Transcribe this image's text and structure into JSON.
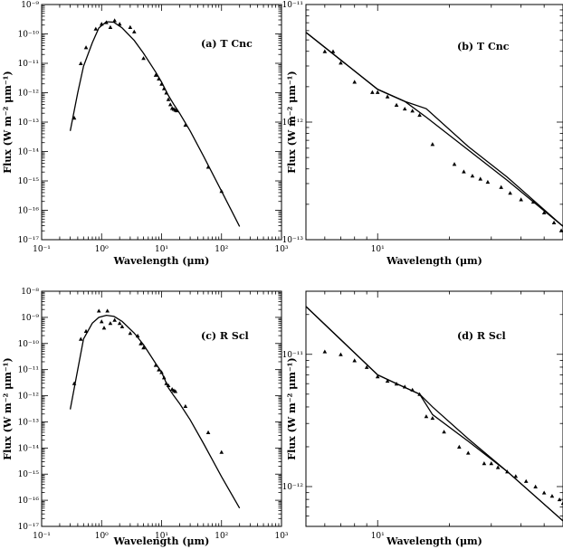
{
  "chart_data": [
    {
      "type": "line",
      "panel_label": "(a) T Cnc",
      "xlabel": "Wavelength (μm)",
      "ylabel": "Flux (W m⁻² μm⁻¹)",
      "x_scale": "log",
      "y_scale": "log",
      "xlim": [
        0.1,
        1000
      ],
      "ylim": [
        1e-17,
        1e-09
      ],
      "x_ticks": [
        {
          "v": 0.1,
          "label": "10⁻¹"
        },
        {
          "v": 1,
          "label": "10⁰"
        },
        {
          "v": 10,
          "label": "10¹"
        },
        {
          "v": 100,
          "label": "10²"
        },
        {
          "v": 1000,
          "label": "10³"
        }
      ],
      "y_ticks": [
        {
          "v": 1e-17,
          "label": "10⁻¹⁷"
        },
        {
          "v": 1e-16,
          "label": "10⁻¹⁶"
        },
        {
          "v": 1e-15,
          "label": "10⁻¹⁵"
        },
        {
          "v": 1e-14,
          "label": "10⁻¹⁴"
        },
        {
          "v": 1e-13,
          "label": "10⁻¹³"
        },
        {
          "v": 1e-12,
          "label": "10⁻¹²"
        },
        {
          "v": 1e-11,
          "label": "10⁻¹¹"
        },
        {
          "v": 1e-10,
          "label": "10⁻¹⁰"
        },
        {
          "v": 1e-09,
          "label": "10⁻⁹"
        }
      ],
      "series": [
        {
          "style": "line",
          "points": [
            [
              0.3,
              5e-14
            ],
            [
              0.4,
              1e-12
            ],
            [
              0.5,
              8e-12
            ],
            [
              0.7,
              5e-11
            ],
            [
              0.9,
              1.6e-10
            ],
            [
              1.2,
              2.6e-10
            ],
            [
              1.6,
              2.5e-10
            ],
            [
              2.2,
              1.6e-10
            ],
            [
              3.5,
              6e-11
            ],
            [
              5,
              2.2e-11
            ],
            [
              8,
              5e-12
            ],
            [
              10,
              2.3e-12
            ],
            [
              13,
              8e-13
            ],
            [
              16,
              4e-13
            ],
            [
              20,
              2e-13
            ],
            [
              30,
              5e-14
            ],
            [
              50,
              7e-15
            ],
            [
              100,
              4.5e-16
            ],
            [
              200,
              2.8e-17
            ]
          ]
        },
        {
          "style": "markers",
          "points": [
            [
              0.35,
              1.4e-13
            ],
            [
              0.45,
              1e-11
            ],
            [
              0.55,
              3.5e-11
            ],
            [
              0.8,
              1.5e-10
            ],
            [
              1.0,
              2.2e-10
            ],
            [
              1.2,
              2.5e-10
            ],
            [
              1.4,
              1.7e-10
            ],
            [
              1.65,
              2.9e-10
            ],
            [
              2.0,
              2.2e-10
            ],
            [
              3.0,
              1.7e-10
            ],
            [
              3.5,
              1.2e-10
            ],
            [
              5,
              1.5e-11
            ],
            [
              8,
              4e-12
            ],
            [
              9,
              3e-12
            ],
            [
              10,
              2e-12
            ],
            [
              11,
              1.4e-12
            ],
            [
              12,
              1e-12
            ],
            [
              13,
              6e-13
            ],
            [
              14,
              4e-13
            ],
            [
              15,
              3e-13
            ],
            [
              16,
              2.8e-13
            ],
            [
              17,
              2.6e-13
            ],
            [
              18,
              2.5e-13
            ],
            [
              25,
              8e-14
            ],
            [
              60,
              3e-15
            ],
            [
              100,
              4.5e-16
            ]
          ]
        }
      ]
    },
    {
      "type": "line",
      "panel_label": "(b) T Cnc",
      "xlabel": "Wavelength (μm)",
      "ylabel": "Flux (W m⁻² μm⁻¹)",
      "x_scale": "log",
      "y_scale": "log",
      "xlim": [
        5,
        60
      ],
      "ylim": [
        1e-13,
        1e-11
      ],
      "x_ticks": [
        {
          "v": 10,
          "label": "10¹"
        }
      ],
      "y_ticks": [
        {
          "v": 1e-13,
          "label": "10⁻¹³"
        },
        {
          "v": 1e-12,
          "label": "10⁻¹²"
        },
        {
          "v": 1e-11,
          "label": "10⁻¹¹"
        }
      ],
      "series": [
        {
          "style": "line",
          "points": [
            [
              5,
              5.8e-12
            ],
            [
              10,
              1.9e-12
            ],
            [
              13,
              1.5e-12
            ],
            [
              16,
              1.3e-12
            ],
            [
              24,
              6.2e-13
            ],
            [
              35,
              3.4e-13
            ],
            [
              60,
              1.3e-13
            ]
          ]
        },
        {
          "style": "line",
          "points": [
            [
              5,
              5.8e-12
            ],
            [
              10,
              1.9e-12
            ],
            [
              13,
              1.5e-12
            ],
            [
              16,
              1.1e-12
            ],
            [
              24,
              5.8e-13
            ],
            [
              35,
              3.2e-13
            ],
            [
              60,
              1.3e-13
            ]
          ]
        },
        {
          "style": "markers",
          "points": [
            [
              6,
              4e-12
            ],
            [
              6.5,
              4e-12
            ],
            [
              7,
              3.2e-12
            ],
            [
              8,
              2.2e-12
            ],
            [
              9.5,
              1.8e-12
            ],
            [
              10,
              1.8e-12
            ],
            [
              11,
              1.65e-12
            ],
            [
              12,
              1.4e-12
            ],
            [
              13,
              1.3e-12
            ],
            [
              14,
              1.25e-12
            ],
            [
              15,
              1.15e-12
            ],
            [
              17,
              6.5e-13
            ],
            [
              21,
              4.4e-13
            ],
            [
              23,
              3.8e-13
            ],
            [
              25,
              3.5e-13
            ],
            [
              27,
              3.3e-13
            ],
            [
              29,
              3.1e-13
            ],
            [
              33,
              2.8e-13
            ],
            [
              36,
              2.5e-13
            ],
            [
              40,
              2.2e-13
            ],
            [
              45,
              2.1e-13
            ],
            [
              50,
              1.7e-13
            ],
            [
              55,
              1.4e-13
            ],
            [
              59,
              1.2e-13
            ]
          ]
        }
      ]
    },
    {
      "type": "line",
      "panel_label": "(c) R Scl",
      "xlabel": "Wavelength (μm)",
      "ylabel": "Flux (W m⁻² μm⁻¹)",
      "x_scale": "log",
      "y_scale": "log",
      "xlim": [
        0.1,
        1000
      ],
      "ylim": [
        1e-17,
        1e-08
      ],
      "x_ticks": [
        {
          "v": 0.1,
          "label": "10⁻¹"
        },
        {
          "v": 1,
          "label": "10⁰"
        },
        {
          "v": 10,
          "label": "10¹"
        },
        {
          "v": 100,
          "label": "10²"
        },
        {
          "v": 1000,
          "label": "10³"
        }
      ],
      "y_ticks": [
        {
          "v": 1e-17,
          "label": "10⁻¹⁷"
        },
        {
          "v": 1e-16,
          "label": "10⁻¹⁶"
        },
        {
          "v": 1e-15,
          "label": "10⁻¹⁵"
        },
        {
          "v": 1e-14,
          "label": "10⁻¹⁴"
        },
        {
          "v": 1e-13,
          "label": "10⁻¹³"
        },
        {
          "v": 1e-12,
          "label": "10⁻¹²"
        },
        {
          "v": 1e-11,
          "label": "10⁻¹¹"
        },
        {
          "v": 1e-10,
          "label": "10⁻¹⁰"
        },
        {
          "v": 1e-09,
          "label": "10⁻⁹"
        },
        {
          "v": 1e-08,
          "label": "10⁻⁸"
        }
      ],
      "series": [
        {
          "style": "line",
          "points": [
            [
              0.3,
              3e-13
            ],
            [
              0.4,
              1e-11
            ],
            [
              0.5,
              1.5e-10
            ],
            [
              0.7,
              6e-10
            ],
            [
              0.9,
              1e-09
            ],
            [
              1.2,
              1.2e-09
            ],
            [
              1.6,
              1.1e-09
            ],
            [
              2.2,
              7e-10
            ],
            [
              3.5,
              2.5e-10
            ],
            [
              5,
              9e-11
            ],
            [
              8,
              1.7e-11
            ],
            [
              10,
              8e-12
            ],
            [
              13,
              2e-12
            ],
            [
              16,
              1e-12
            ],
            [
              20,
              5e-13
            ],
            [
              30,
              1.2e-13
            ],
            [
              50,
              1.5e-14
            ],
            [
              100,
              8e-16
            ],
            [
              200,
              5e-17
            ]
          ]
        },
        {
          "style": "markers",
          "points": [
            [
              0.35,
              3e-12
            ],
            [
              0.45,
              1.5e-10
            ],
            [
              0.55,
              3e-10
            ],
            [
              0.9,
              1.8e-09
            ],
            [
              1.0,
              7e-10
            ],
            [
              1.1,
              4e-10
            ],
            [
              1.25,
              1.8e-09
            ],
            [
              1.4,
              6e-10
            ],
            [
              1.65,
              8e-10
            ],
            [
              2.0,
              6e-10
            ],
            [
              2.2,
              4.5e-10
            ],
            [
              3.0,
              2.5e-10
            ],
            [
              4,
              2e-10
            ],
            [
              4.5,
              1e-10
            ],
            [
              5,
              7e-11
            ],
            [
              8,
              1.5e-11
            ],
            [
              9,
              1e-11
            ],
            [
              10,
              8e-12
            ],
            [
              11,
              5e-12
            ],
            [
              12,
              3e-12
            ],
            [
              13,
              2.5e-12
            ],
            [
              15,
              1.8e-12
            ],
            [
              16,
              1.6e-12
            ],
            [
              17,
              1.5e-12
            ],
            [
              25,
              4e-13
            ],
            [
              60,
              4e-14
            ],
            [
              100,
              7e-15
            ]
          ]
        }
      ]
    },
    {
      "type": "line",
      "panel_label": "(d) R Scl",
      "xlabel": "Wavelength (μm)",
      "ylabel": "Flux (W m⁻² μm⁻¹)",
      "x_scale": "log",
      "y_scale": "log",
      "xlim": [
        5,
        60
      ],
      "ylim": [
        5e-13,
        3e-11
      ],
      "x_ticks": [
        {
          "v": 10,
          "label": "10¹"
        }
      ],
      "y_ticks": [
        {
          "v": 1e-12,
          "label": "10⁻¹²"
        },
        {
          "v": 1e-11,
          "label": "10⁻¹¹"
        }
      ],
      "series": [
        {
          "style": "line",
          "points": [
            [
              5,
              2.3e-11
            ],
            [
              10,
              7e-12
            ],
            [
              12,
              6e-12
            ],
            [
              15,
              5e-12
            ],
            [
              17,
              4e-12
            ],
            [
              24,
              2.3e-12
            ],
            [
              35,
              1.3e-12
            ],
            [
              60,
              5.5e-13
            ]
          ]
        },
        {
          "style": "line",
          "points": [
            [
              5,
              2.3e-11
            ],
            [
              10,
              7e-12
            ],
            [
              12,
              6e-12
            ],
            [
              15,
              5e-12
            ],
            [
              17,
              3.5e-12
            ],
            [
              24,
              2.2e-12
            ],
            [
              35,
              1.3e-12
            ],
            [
              60,
              5.5e-13
            ]
          ]
        },
        {
          "style": "markers",
          "points": [
            [
              6,
              1.05e-11
            ],
            [
              7,
              1e-11
            ],
            [
              8,
              9e-12
            ],
            [
              9,
              8e-12
            ],
            [
              10,
              6.8e-12
            ],
            [
              11,
              6.3e-12
            ],
            [
              12,
              6e-12
            ],
            [
              13,
              5.7e-12
            ],
            [
              14,
              5.4e-12
            ],
            [
              15,
              5e-12
            ],
            [
              16,
              3.4e-12
            ],
            [
              17,
              3.3e-12
            ],
            [
              19,
              2.6e-12
            ],
            [
              22,
              2e-12
            ],
            [
              24,
              1.8e-12
            ],
            [
              28,
              1.5e-12
            ],
            [
              30,
              1.5e-12
            ],
            [
              32,
              1.4e-12
            ],
            [
              35,
              1.3e-12
            ],
            [
              38,
              1.2e-12
            ],
            [
              42,
              1.1e-12
            ],
            [
              46,
              1e-12
            ],
            [
              50,
              9e-13
            ],
            [
              54,
              8.5e-13
            ],
            [
              58,
              8e-13
            ],
            [
              60,
              7.5e-13
            ]
          ]
        }
      ]
    }
  ]
}
